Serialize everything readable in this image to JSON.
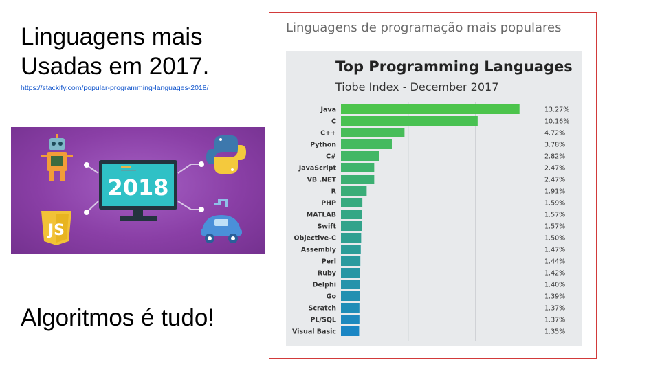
{
  "slide": {
    "title_line1": "Linguagens mais",
    "title_line2": "Usadas em 2017.",
    "source_url": "https://stackify.com/popular-programming-languages-2018/",
    "tagline": "Algoritmos é tudo!"
  },
  "banner": {
    "year": "2018",
    "js_label": "JS",
    "icons": [
      "robot-icon",
      "monitor-icon",
      "python-icon",
      "javascript-icon",
      "robotic-arm-car-icon"
    ]
  },
  "frame": {
    "caption": "Linguagens de programação mais populares",
    "border_color": "#d23a3a"
  },
  "chart_data": {
    "type": "bar",
    "orientation": "horizontal",
    "title": "Top Programming Languages",
    "subtitle": "Tiobe Index - December 2017",
    "categories": [
      "Java",
      "C",
      "C++",
      "Python",
      "C#",
      "JavaScript",
      "VB .NET",
      "R",
      "PHP",
      "MATLAB",
      "Swift",
      "Objective-C",
      "Assembly",
      "Perl",
      "Ruby",
      "Delphi",
      "Go",
      "Scratch",
      "PL/SQL",
      "Visual Basic"
    ],
    "values": [
      13.27,
      10.16,
      4.72,
      3.78,
      2.82,
      2.47,
      2.47,
      1.91,
      1.59,
      1.57,
      1.57,
      1.5,
      1.47,
      1.44,
      1.42,
      1.4,
      1.39,
      1.37,
      1.37,
      1.35
    ],
    "labels": [
      "13.27%",
      "10.16%",
      "4.72%",
      "3.78%",
      "2.82%",
      "2.47%",
      "2.47%",
      "1.91%",
      "1.59%",
      "1.57%",
      "1.57%",
      "1.50%",
      "1.47%",
      "1.44%",
      "1.42%",
      "1.40%",
      "1.39%",
      "1.37%",
      "1.37%",
      "1.35%"
    ],
    "xlim": [
      0,
      14
    ],
    "gridlines": [
      5,
      10
    ],
    "grid": true,
    "legend": "none",
    "color_top": "#4cc44c",
    "color_bottom": "#1a86c4"
  }
}
